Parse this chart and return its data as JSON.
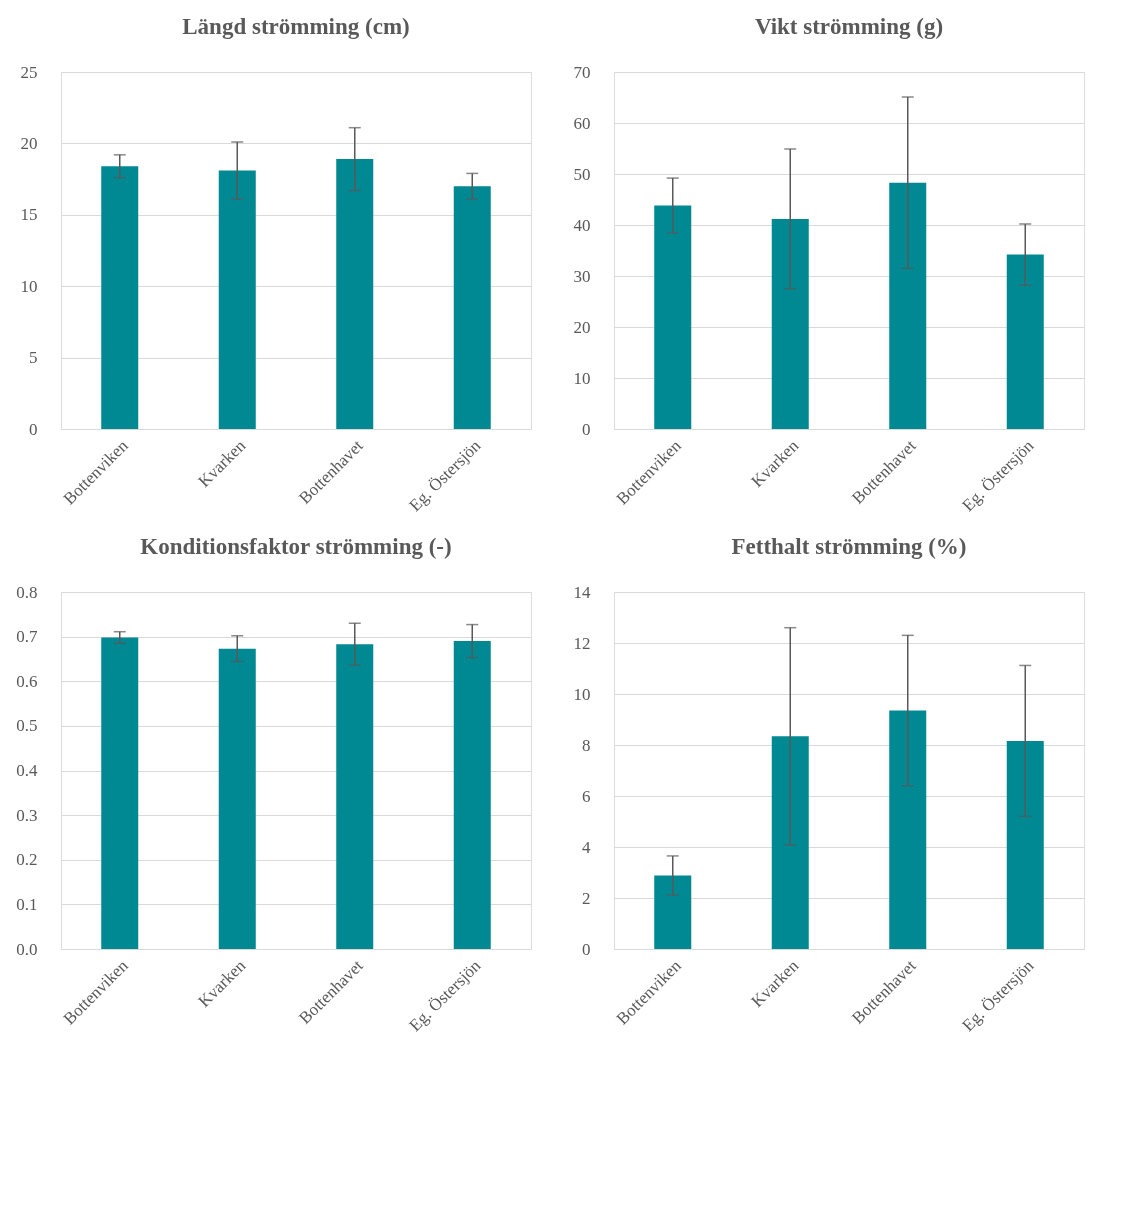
{
  "chart_data": [
    {
      "type": "bar",
      "title": "Längd strömming (cm)",
      "categories": [
        "Bottenviken",
        "Kvarken",
        "Bottenhavet",
        "Eg. Östersjön"
      ],
      "values": [
        18.4,
        18.1,
        18.9,
        17.0
      ],
      "errors": [
        0.8,
        2.0,
        2.2,
        0.9
      ],
      "color": "#008893",
      "ylim": [
        0,
        25
      ],
      "yticks": [
        0,
        5,
        10,
        15,
        20,
        25
      ],
      "grid": "y"
    },
    {
      "type": "bar",
      "title": "Vikt strömming (g)",
      "categories": [
        "Bottenviken",
        "Kvarken",
        "Bottenhavet",
        "Eg. Östersjön"
      ],
      "values": [
        43.8,
        41.2,
        48.3,
        34.2
      ],
      "errors": [
        5.4,
        13.7,
        16.8,
        6.0
      ],
      "color": "#008893",
      "ylim": [
        0,
        70
      ],
      "yticks": [
        0,
        10,
        20,
        30,
        40,
        50,
        60,
        70
      ],
      "grid": "y"
    },
    {
      "type": "bar",
      "title": "Konditionsfaktor strömming (-)",
      "categories": [
        "Bottenviken",
        "Kvarken",
        "Bottenhavet",
        "Eg. Östersjön"
      ],
      "values": [
        0.698,
        0.673,
        0.683,
        0.69
      ],
      "errors": [
        0.013,
        0.029,
        0.047,
        0.037
      ],
      "color": "#008893",
      "ylim": [
        0,
        0.8
      ],
      "yticks": [
        {
          "value": 0,
          "label": "0.0"
        },
        0.1,
        0.2,
        0.3,
        0.4,
        0.5,
        0.6,
        0.7,
        0.8
      ],
      "grid": "y"
    },
    {
      "type": "bar",
      "title": "Fetthalt strömming (%)",
      "categories": [
        "Bottenviken",
        "Kvarken",
        "Bottenhavet",
        "Eg. Östersjön"
      ],
      "values": [
        2.88,
        8.34,
        9.35,
        8.16
      ],
      "errors": [
        0.77,
        4.26,
        2.95,
        2.96
      ],
      "color": "#008893",
      "ylim": [
        0,
        14
      ],
      "yticks": [
        0,
        2,
        4,
        6,
        8,
        10,
        12,
        14
      ],
      "grid": "y"
    }
  ]
}
